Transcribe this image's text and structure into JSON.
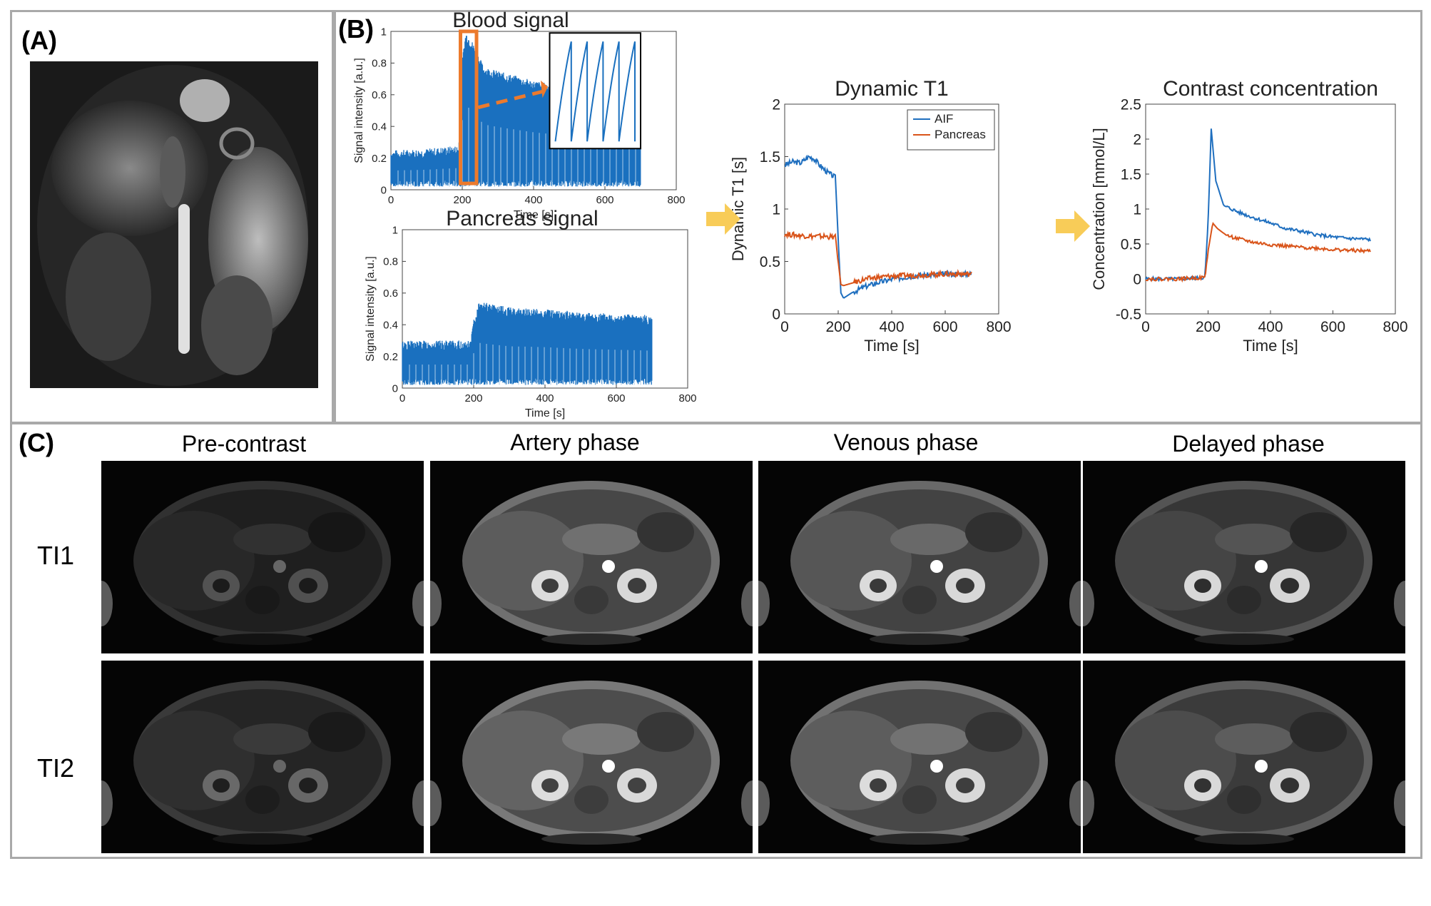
{
  "panels": {
    "a": {
      "label": "(A)"
    },
    "b": {
      "label": "(B)"
    },
    "c": {
      "label": "(C)"
    }
  },
  "charts": {
    "blood": {
      "title": "Blood signal",
      "xlabel": "Time [s]",
      "ylabel": "Signal intensity [a.u.]",
      "xticks": [
        "0",
        "200",
        "400",
        "600",
        "800"
      ],
      "yticks": [
        "0",
        "0.2",
        "0.4",
        "0.6",
        "0.8",
        "1"
      ]
    },
    "pancreas": {
      "title": "Pancreas signal",
      "xlabel": "Time [s]",
      "ylabel": "Signal intensity [a.u.]",
      "xticks": [
        "0",
        "200",
        "400",
        "600",
        "800"
      ],
      "yticks": [
        "0",
        "0.2",
        "0.4",
        "0.6",
        "0.8",
        "1"
      ]
    },
    "t1": {
      "title": "Dynamic T1",
      "xlabel": "Time [s]",
      "ylabel": "Dynamic T1 [s]",
      "xticks": [
        "0",
        "200",
        "400",
        "600",
        "800"
      ],
      "yticks": [
        "0",
        "0.5",
        "1",
        "1.5",
        "2"
      ],
      "legend": [
        "AIF",
        "Pancreas"
      ]
    },
    "conc": {
      "title": "Contrast concentration",
      "xlabel": "Time [s]",
      "ylabel": "Concentration [mmol/L]",
      "xticks": [
        "0",
        "200",
        "400",
        "600",
        "800"
      ],
      "yticks": [
        "-0.5",
        "0",
        "0.5",
        "1",
        "1.5",
        "2",
        "2.5"
      ]
    }
  },
  "chart_data": [
    {
      "type": "line",
      "title": "Blood signal",
      "xlabel": "Time [s]",
      "ylabel": "Signal intensity [a.u.]",
      "xlim": [
        0,
        800
      ],
      "ylim": [
        0,
        1
      ],
      "series": [
        {
          "x": [
            0,
            100,
            190,
            200,
            210,
            230,
            260,
            300,
            400,
            500,
            600,
            700
          ],
          "values": [
            0.22,
            0.23,
            0.25,
            0.8,
            0.97,
            0.9,
            0.75,
            0.72,
            0.66,
            0.62,
            0.6,
            0.58
          ]
        }
      ]
    },
    {
      "type": "line",
      "title": "Pancreas signal",
      "xlabel": "Time [s]",
      "ylabel": "Signal intensity [a.u.]",
      "xlim": [
        0,
        800
      ],
      "ylim": [
        0,
        1
      ],
      "series": [
        {
          "x": [
            0,
            100,
            190,
            200,
            215,
            230,
            300,
            400,
            500,
            600,
            700
          ],
          "values": [
            0.27,
            0.27,
            0.27,
            0.4,
            0.52,
            0.51,
            0.48,
            0.47,
            0.45,
            0.44,
            0.43
          ]
        }
      ]
    },
    {
      "type": "line",
      "title": "Dynamic T1",
      "xlabel": "Time [s]",
      "ylabel": "Dynamic T1 [s]",
      "xlim": [
        0,
        800
      ],
      "ylim": [
        0,
        2
      ],
      "series": [
        {
          "name": "AIF",
          "color": "#1f6fbf",
          "x": [
            0,
            30,
            60,
            90,
            110,
            130,
            160,
            190,
            200,
            210,
            220,
            250,
            300,
            350,
            400,
            450,
            500,
            550,
            600,
            650,
            700
          ],
          "values": [
            1.42,
            1.45,
            1.44,
            1.5,
            1.48,
            1.42,
            1.35,
            1.3,
            0.7,
            0.2,
            0.15,
            0.2,
            0.26,
            0.3,
            0.33,
            0.35,
            0.37,
            0.37,
            0.38,
            0.38,
            0.38
          ]
        },
        {
          "name": "Pancreas",
          "color": "#d9541a",
          "x": [
            0,
            50,
            100,
            150,
            190,
            200,
            210,
            220,
            260,
            300,
            350,
            400,
            500,
            600,
            700
          ],
          "values": [
            0.76,
            0.75,
            0.74,
            0.74,
            0.73,
            0.5,
            0.28,
            0.27,
            0.3,
            0.33,
            0.35,
            0.36,
            0.37,
            0.38,
            0.38
          ]
        }
      ]
    },
    {
      "type": "line",
      "title": "Contrast concentration",
      "xlabel": "Time [s]",
      "ylabel": "Concentration [mmol/L]",
      "xlim": [
        0,
        800
      ],
      "ylim": [
        -0.5,
        2.5
      ],
      "series": [
        {
          "color": "#1f6fbf",
          "x": [
            0,
            100,
            190,
            200,
            210,
            215,
            225,
            250,
            300,
            350,
            400,
            450,
            500,
            550,
            600,
            650,
            700,
            720
          ],
          "values": [
            0,
            0,
            0.02,
            0.8,
            2.15,
            1.9,
            1.4,
            1.05,
            0.95,
            0.87,
            0.8,
            0.72,
            0.68,
            0.63,
            0.6,
            0.58,
            0.57,
            0.56
          ]
        },
        {
          "color": "#d9541a",
          "x": [
            0,
            100,
            190,
            200,
            215,
            230,
            260,
            300,
            350,
            400,
            450,
            500,
            550,
            600,
            650,
            700,
            720
          ],
          "values": [
            0,
            0,
            0.02,
            0.4,
            0.8,
            0.72,
            0.62,
            0.57,
            0.52,
            0.49,
            0.47,
            0.45,
            0.44,
            0.42,
            0.41,
            0.4,
            0.4
          ]
        }
      ]
    }
  ],
  "phases": [
    "Pre-contrast",
    "Artery phase",
    "Venous phase",
    "Delayed phase"
  ],
  "rows": [
    "TI1",
    "TI2"
  ]
}
